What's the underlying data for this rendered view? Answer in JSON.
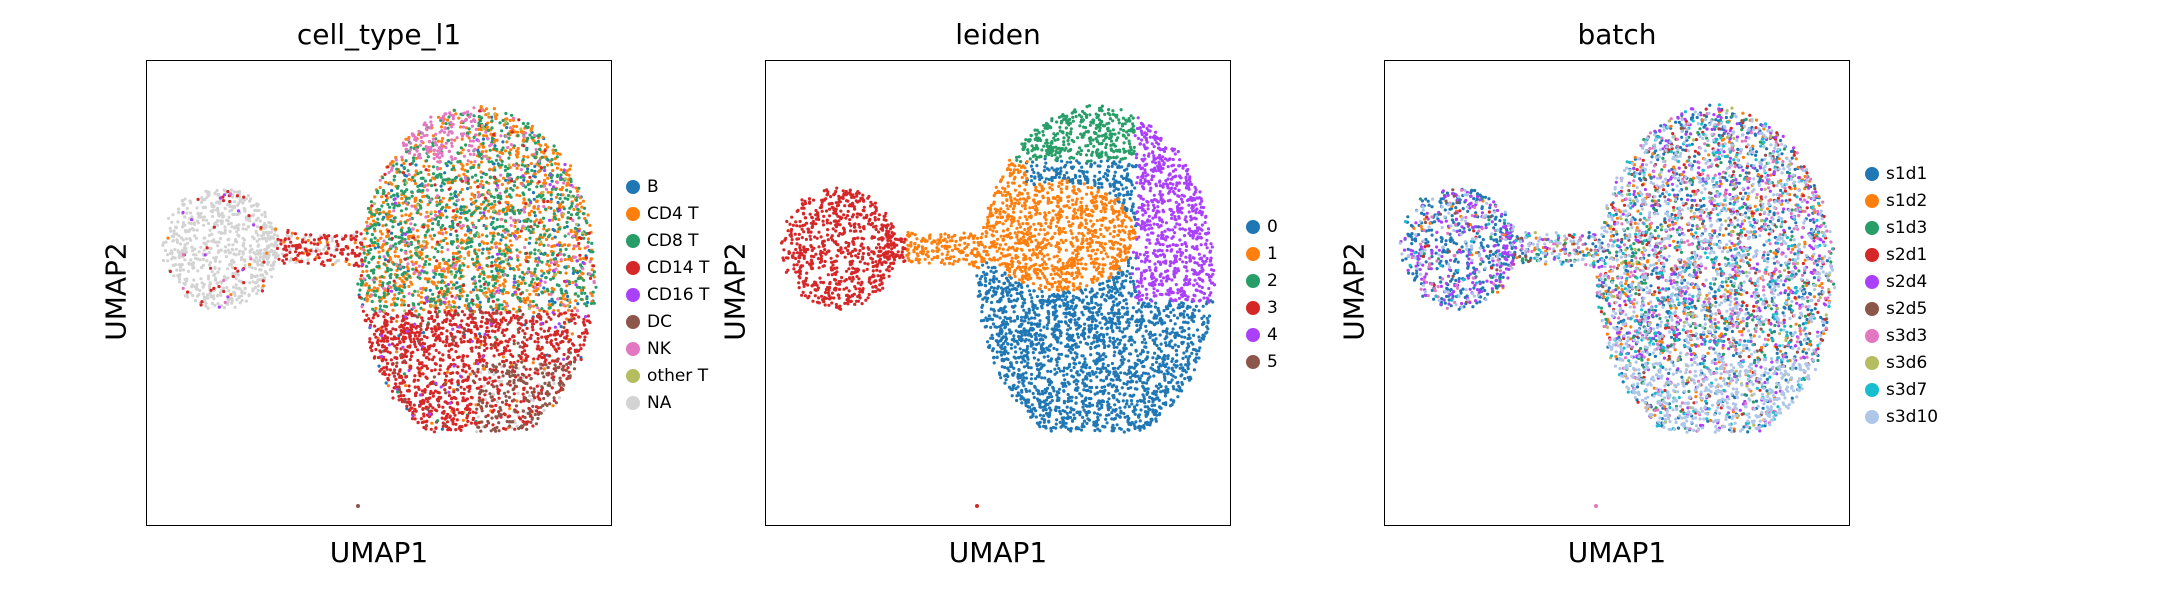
{
  "chart_data": [
    {
      "type": "scatter",
      "title": "cell_type_l1",
      "xlabel": "UMAP1",
      "ylabel": "UMAP2",
      "ticks": false,
      "grid": false,
      "legend_position": "right",
      "legend": [
        {
          "label": "B",
          "color": "#1f77b4"
        },
        {
          "label": "CD4 T",
          "color": "#ff7f0e"
        },
        {
          "label": "CD8 T",
          "color": "#279e68"
        },
        {
          "label": "CD14 T",
          "color": "#d62728"
        },
        {
          "label": "CD16 T",
          "color": "#aa40fc"
        },
        {
          "label": "DC",
          "color": "#8c564b"
        },
        {
          "label": "NK",
          "color": "#e377c2"
        },
        {
          "label": "other T",
          "color": "#b5bd61"
        },
        {
          "label": "NA",
          "color": "#d3d3d3"
        }
      ]
    },
    {
      "type": "scatter",
      "title": "leiden",
      "xlabel": "UMAP1",
      "ylabel": "UMAP2",
      "ticks": false,
      "grid": false,
      "legend_position": "right",
      "legend": [
        {
          "label": "0",
          "color": "#1f77b4"
        },
        {
          "label": "1",
          "color": "#ff7f0e"
        },
        {
          "label": "2",
          "color": "#279e68"
        },
        {
          "label": "3",
          "color": "#d62728"
        },
        {
          "label": "4",
          "color": "#aa40fc"
        },
        {
          "label": "5",
          "color": "#8c564b"
        }
      ]
    },
    {
      "type": "scatter",
      "title": "batch",
      "xlabel": "UMAP1",
      "ylabel": "UMAP2",
      "ticks": false,
      "grid": false,
      "legend_position": "right",
      "legend": [
        {
          "label": "s1d1",
          "color": "#1f77b4"
        },
        {
          "label": "s1d2",
          "color": "#ff7f0e"
        },
        {
          "label": "s1d3",
          "color": "#279e68"
        },
        {
          "label": "s2d1",
          "color": "#d62728"
        },
        {
          "label": "s2d4",
          "color": "#aa40fc"
        },
        {
          "label": "s2d5",
          "color": "#8c564b"
        },
        {
          "label": "s3d3",
          "color": "#e377c2"
        },
        {
          "label": "s3d6",
          "color": "#b5bd61"
        },
        {
          "label": "s3d7",
          "color": "#17becf"
        },
        {
          "label": "s3d10",
          "color": "#aec7e8"
        }
      ]
    }
  ]
}
